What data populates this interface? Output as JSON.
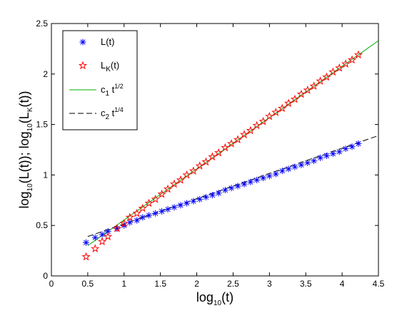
{
  "chart_data": {
    "type": "scatter",
    "xlabel": {
      "base": "log",
      "sub": "10",
      "rest": "(t)"
    },
    "ylabel": {
      "p1": "log",
      "s1": "10",
      "p2": "(L(t)); log",
      "s2": "10",
      "p3": "(L",
      "s3": "K",
      "p4": "(t))"
    },
    "xlim": [
      0,
      4.5
    ],
    "ylim": [
      0,
      2.5
    ],
    "xticks": [
      0,
      0.5,
      1,
      1.5,
      2,
      2.5,
      3,
      3.5,
      4,
      4.5
    ],
    "xtick_labels": [
      "0",
      "0.5",
      "1",
      "1.5",
      "2",
      "2.5",
      "3",
      "3.5",
      "4",
      "4.5"
    ],
    "yticks": [
      0,
      0.5,
      1,
      1.5,
      2,
      2.5
    ],
    "ytick_labels": [
      "0",
      "0.5",
      "1",
      "1.5",
      "2",
      "2.5"
    ],
    "grid": false,
    "legend_position": "top-left",
    "series": [
      {
        "name": "L(t)",
        "legend": {
          "main": "L(t)"
        },
        "marker": "asterisk",
        "color": "#0000ff",
        "x": [
          0.477,
          0.602,
          0.699,
          0.778,
          0.903,
          1.0,
          1.079,
          1.176,
          1.255,
          1.342,
          1.431,
          1.519,
          1.602,
          1.69,
          1.778,
          1.863,
          1.954,
          2.041,
          2.127,
          2.215,
          2.301,
          2.391,
          2.477,
          2.565,
          2.653,
          2.74,
          2.826,
          2.914,
          3.0,
          3.088,
          3.176,
          3.263,
          3.35,
          3.438,
          3.525,
          3.612,
          3.7,
          3.787,
          3.875,
          3.962,
          4.049,
          4.137,
          4.224
        ],
        "y": [
          0.33,
          0.38,
          0.41,
          0.44,
          0.47,
          0.5,
          0.53,
          0.55,
          0.58,
          0.6,
          0.62,
          0.64,
          0.66,
          0.68,
          0.7,
          0.72,
          0.74,
          0.76,
          0.78,
          0.8,
          0.82,
          0.85,
          0.87,
          0.89,
          0.91,
          0.93,
          0.95,
          0.97,
          0.99,
          1.01,
          1.04,
          1.06,
          1.08,
          1.1,
          1.12,
          1.14,
          1.17,
          1.19,
          1.21,
          1.23,
          1.26,
          1.28,
          1.31
        ]
      },
      {
        "name": "L_K(t)",
        "legend": {
          "main": "L",
          "sub": "K",
          "rest": "(t)"
        },
        "marker": "pentagram",
        "color": "#ff0000",
        "x": [
          0.477,
          0.602,
          0.699,
          0.778,
          0.903,
          1.0,
          1.079,
          1.176,
          1.255,
          1.342,
          1.431,
          1.519,
          1.602,
          1.69,
          1.778,
          1.863,
          1.954,
          2.041,
          2.127,
          2.215,
          2.301,
          2.391,
          2.477,
          2.565,
          2.653,
          2.74,
          2.826,
          2.914,
          3.0,
          3.088,
          3.176,
          3.263,
          3.35,
          3.438,
          3.525,
          3.612,
          3.7,
          3.787,
          3.875,
          3.962,
          4.049,
          4.137,
          4.224
        ],
        "y": [
          0.19,
          0.27,
          0.34,
          0.39,
          0.47,
          0.52,
          0.58,
          0.62,
          0.67,
          0.72,
          0.76,
          0.81,
          0.86,
          0.91,
          0.95,
          1.0,
          1.04,
          1.09,
          1.13,
          1.18,
          1.22,
          1.27,
          1.31,
          1.35,
          1.4,
          1.44,
          1.49,
          1.53,
          1.58,
          1.62,
          1.66,
          1.71,
          1.75,
          1.8,
          1.84,
          1.88,
          1.93,
          1.97,
          2.02,
          2.06,
          2.1,
          2.14,
          2.19
        ]
      },
      {
        "name": "c1 t^1/2",
        "legend": {
          "main": "c",
          "sub": "1",
          "rest": " t",
          "sup": "1/2"
        },
        "marker": "none",
        "line": "solid",
        "color": "#00b000",
        "x": [
          0.5,
          4.5
        ],
        "y": [
          0.3,
          2.33
        ]
      },
      {
        "name": "c2 t^1/4",
        "legend": {
          "main": "c",
          "sub": "2",
          "rest": " t",
          "sup": "1/4"
        },
        "marker": "none",
        "line": "dashed",
        "color": "#000000",
        "x": [
          0.5,
          4.5
        ],
        "y": [
          0.39,
          1.39
        ]
      }
    ]
  }
}
